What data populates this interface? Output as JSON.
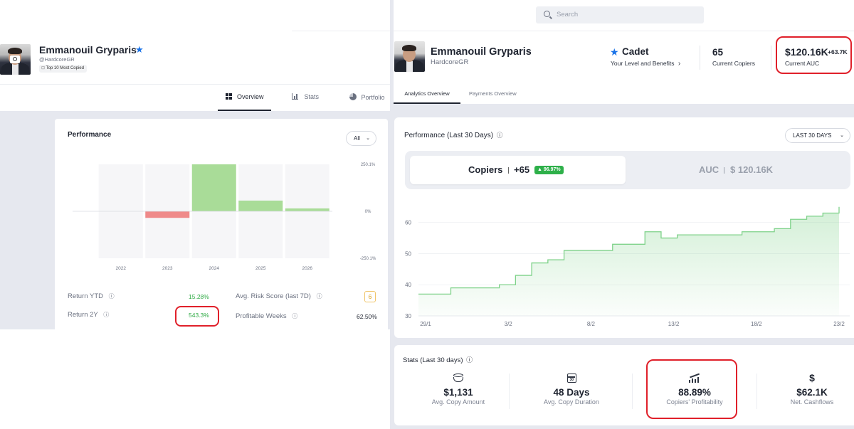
{
  "left": {
    "profile": {
      "name": "Emmanouil Gryparis",
      "handle": "@HardcoreGR",
      "badge": "Top 10 Most Copied"
    },
    "tabs": [
      {
        "label": "Overview"
      },
      {
        "label": "Stats"
      },
      {
        "label": "Portfolio"
      }
    ],
    "performance": {
      "title": "Performance",
      "filter": "All",
      "y_ticks": [
        "250.1%",
        "0%",
        "-250.1%"
      ],
      "stats": {
        "return_ytd_label": "Return YTD",
        "return_ytd_value": "15.28%",
        "return_2y_label": "Return 2Y",
        "return_2y_value": "543.3%",
        "risk_label": "Avg. Risk Score (last 7D)",
        "risk_value": "6",
        "profitable_weeks_label": "Profitable Weeks",
        "profitable_weeks_value": "62.50%"
      }
    }
  },
  "right": {
    "search": {
      "placeholder": "Search"
    },
    "profile": {
      "name": "Emmanouil Gryparis",
      "handle": "HardcoreGR"
    },
    "level": {
      "name": "Cadet",
      "link": "Your Level and Benefits"
    },
    "copiers": {
      "value": "65",
      "label": "Current Copiers"
    },
    "auc": {
      "value": "$120.16K",
      "delta": "+63.7K",
      "label": "Current AUC"
    },
    "tabs": [
      {
        "label": "Analytics Overview"
      },
      {
        "label": "Payments Overview"
      }
    ],
    "performance": {
      "title": "Performance (Last 30 Days)",
      "period": "LAST 30 DAYS",
      "copiers_label": "Copiers",
      "copiers_delta": "+65",
      "copiers_pct": "96.97%",
      "auc_label": "AUC",
      "auc_value": "$ 120.16K"
    },
    "stats": {
      "title": "Stats (Last 30 days)",
      "items": [
        {
          "value": "$1,131",
          "label": "Avg. Copy Amount"
        },
        {
          "value": "48 Days",
          "label": "Avg. Copy Duration"
        },
        {
          "value": "88.89%",
          "label": "Copiers' Profitability"
        },
        {
          "value": "$62.1K",
          "label": "Net. Cashflows"
        }
      ]
    }
  },
  "chart_data": [
    {
      "type": "bar",
      "title": "Performance",
      "categories": [
        "2022",
        "2023",
        "2024",
        "2025",
        "2026"
      ],
      "values": [
        0,
        -35,
        250.1,
        57,
        15.28
      ],
      "ylim": [
        -250.1,
        250.1
      ],
      "y_ticks": [
        "250.1%",
        "0%",
        "-250.1%"
      ],
      "colors": {
        "positive": "#a9dc98",
        "negative": "#ef8a8a"
      }
    },
    {
      "type": "area",
      "title": "Performance (Last 30 Days)",
      "x_ticks": [
        "29/1",
        "3/2",
        "8/2",
        "13/2",
        "18/2",
        "23/2"
      ],
      "y_ticks": [
        30,
        40,
        50,
        60
      ],
      "ylim": [
        30,
        67
      ],
      "series": [
        {
          "x": [
            0,
            1,
            2,
            3,
            4,
            5,
            6,
            7,
            8,
            9,
            10,
            11,
            12,
            13,
            14,
            15,
            16,
            17,
            18,
            19,
            20,
            21,
            22,
            23,
            24,
            25,
            26
          ],
          "values": [
            37,
            37,
            39,
            39,
            39,
            40,
            43,
            47,
            48,
            51,
            51,
            51,
            53,
            53,
            57,
            55,
            56,
            56,
            56,
            56,
            57,
            57,
            58,
            61,
            62,
            63,
            65
          ]
        }
      ],
      "color": "#7fd28a"
    }
  ]
}
